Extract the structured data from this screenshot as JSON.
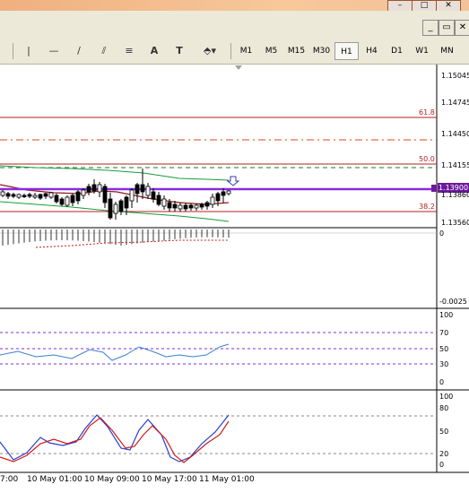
{
  "window": {
    "minimize_icon": "minimize-icon",
    "maximize_icon": "maximize-icon",
    "close_icon": "close-icon"
  },
  "toolbar": {
    "tools": [
      {
        "name": "cursor-tool",
        "glyph": "|"
      },
      {
        "name": "horizontal-line-tool",
        "glyph": "—"
      },
      {
        "name": "trendline-tool",
        "glyph": "/"
      },
      {
        "name": "equidistant-channel-tool",
        "glyph": "⫽"
      },
      {
        "name": "fibonacci-retracement-tool",
        "glyph": "≡"
      },
      {
        "name": "text-tool",
        "glyph": "A"
      },
      {
        "name": "text-label-tool",
        "glyph": "T"
      },
      {
        "name": "arrows-tool",
        "glyph": "⬘▾"
      }
    ],
    "timeframes": [
      "M1",
      "M5",
      "M15",
      "M30",
      "H1",
      "H4",
      "D1",
      "W1",
      "MN"
    ],
    "active_timeframe": "H1"
  },
  "price_axis": [
    "1.15045",
    "1.14745",
    "1.14450",
    "1.14155",
    "1.13900",
    "1.13860",
    "1.13560"
  ],
  "current_price": "1.13900",
  "fib_levels": [
    "61.8",
    "50.0",
    "38.2"
  ],
  "macd_axis": [
    "0",
    "-0.0025"
  ],
  "rsi_axis": [
    "100",
    "70",
    "50",
    "30",
    "0"
  ],
  "stoch_axis": [
    "100",
    "80",
    "50",
    "20",
    "0"
  ],
  "time_axis": [
    "7:00",
    "10 May 01:00",
    "10 May 09:00",
    "10 May 17:00",
    "11 May 01:00"
  ],
  "colors": {
    "fib": "#b22222",
    "bollinger": "#1a9a3a",
    "ma": "#8b1a1a",
    "current_price_line": "#8a2be2",
    "rsi": "#3a7fcf",
    "stoch_main": "#2a3fcf",
    "stoch_signal": "#d01a1a"
  }
}
